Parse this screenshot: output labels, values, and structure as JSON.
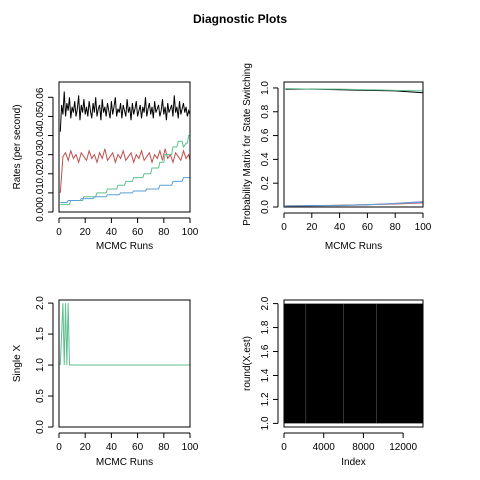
{
  "figure": {
    "title": "Diagnostic Plots"
  },
  "chart_data": [
    {
      "type": "line",
      "xlabel": "MCMC Runs",
      "ylabel": "Rates (per second)",
      "xlim": [
        0,
        100
      ],
      "ylim": [
        0,
        0.068
      ],
      "xticks": [
        0,
        20,
        40,
        60,
        80,
        100
      ],
      "yticks": [
        0.0,
        0.01,
        0.02,
        0.03,
        0.04,
        0.05,
        0.06
      ],
      "ytick_labels": [
        "0.00",
        "0.01",
        "0.02",
        "0.03",
        "0.04",
        "0.05",
        "0.06"
      ],
      "series": [
        {
          "color": "#000000",
          "x": [
            1,
            2,
            3,
            4,
            5,
            6,
            7,
            8,
            9,
            10,
            11,
            12,
            13,
            14,
            15,
            16,
            17,
            18,
            19,
            20,
            21,
            22,
            23,
            24,
            25,
            26,
            27,
            28,
            29,
            30,
            31,
            32,
            33,
            34,
            35,
            36,
            37,
            38,
            39,
            40,
            41,
            42,
            43,
            44,
            45,
            46,
            47,
            48,
            49,
            50,
            51,
            52,
            53,
            54,
            55,
            56,
            57,
            58,
            59,
            60,
            61,
            62,
            63,
            64,
            65,
            66,
            67,
            68,
            69,
            70,
            71,
            72,
            73,
            74,
            75,
            76,
            77,
            78,
            79,
            80,
            81,
            82,
            83,
            84,
            85,
            86,
            87,
            88,
            89,
            90,
            91,
            92,
            93,
            94,
            95,
            96,
            97,
            98,
            99,
            100
          ],
          "y": [
            0.042,
            0.056,
            0.051,
            0.063,
            0.05,
            0.057,
            0.053,
            0.06,
            0.049,
            0.055,
            0.052,
            0.058,
            0.05,
            0.054,
            0.061,
            0.048,
            0.056,
            0.052,
            0.059,
            0.051,
            0.055,
            0.05,
            0.058,
            0.053,
            0.049,
            0.057,
            0.052,
            0.06,
            0.05,
            0.054,
            0.056,
            0.048,
            0.059,
            0.052,
            0.055,
            0.05,
            0.057,
            0.053,
            0.049,
            0.058,
            0.051,
            0.055,
            0.06,
            0.05,
            0.054,
            0.052,
            0.057,
            0.049,
            0.056,
            0.053,
            0.05,
            0.059,
            0.052,
            0.055,
            0.048,
            0.057,
            0.051,
            0.054,
            0.058,
            0.05,
            0.053,
            0.056,
            0.049,
            0.055,
            0.052,
            0.06,
            0.05,
            0.054,
            0.057,
            0.051,
            0.055,
            0.049,
            0.058,
            0.052,
            0.054,
            0.056,
            0.05,
            0.053,
            0.059,
            0.051,
            0.055,
            0.048,
            0.057,
            0.052,
            0.054,
            0.056,
            0.05,
            0.061,
            0.052,
            0.055,
            0.049,
            0.058,
            0.051,
            0.054,
            0.057,
            0.052,
            0.055,
            0.05,
            0.053,
            0.051
          ]
        },
        {
          "color": "#c0504d",
          "x": [
            1,
            3,
            5,
            7,
            9,
            11,
            13,
            15,
            17,
            19,
            21,
            23,
            25,
            27,
            29,
            31,
            33,
            35,
            37,
            39,
            41,
            43,
            45,
            47,
            49,
            51,
            53,
            55,
            57,
            59,
            61,
            63,
            65,
            67,
            69,
            71,
            73,
            75,
            77,
            79,
            81,
            83,
            85,
            87,
            89,
            91,
            93,
            95,
            97,
            99,
            100
          ],
          "y": [
            0.01,
            0.029,
            0.031,
            0.027,
            0.032,
            0.028,
            0.03,
            0.026,
            0.031,
            0.029,
            0.027,
            0.032,
            0.028,
            0.03,
            0.026,
            0.031,
            0.028,
            0.033,
            0.027,
            0.029,
            0.031,
            0.026,
            0.03,
            0.028,
            0.032,
            0.027,
            0.029,
            0.031,
            0.026,
            0.03,
            0.028,
            0.032,
            0.027,
            0.029,
            0.031,
            0.026,
            0.03,
            0.028,
            0.032,
            0.027,
            0.033,
            0.028,
            0.03,
            0.026,
            0.031,
            0.029,
            0.027,
            0.032,
            0.028,
            0.03,
            0.027
          ]
        },
        {
          "color": "#5fbf8f",
          "x": [
            1,
            8,
            9,
            18,
            19,
            28,
            29,
            36,
            37,
            44,
            45,
            50,
            51,
            56,
            57,
            64,
            65,
            70,
            71,
            76,
            77,
            80,
            81,
            86,
            87,
            90,
            91,
            94,
            95,
            97,
            98,
            99,
            100
          ],
          "y": [
            0.004,
            0.004,
            0.006,
            0.006,
            0.008,
            0.008,
            0.01,
            0.01,
            0.012,
            0.012,
            0.014,
            0.014,
            0.016,
            0.016,
            0.018,
            0.018,
            0.02,
            0.02,
            0.023,
            0.023,
            0.026,
            0.026,
            0.03,
            0.03,
            0.034,
            0.034,
            0.037,
            0.037,
            0.034,
            0.036,
            0.036,
            0.04,
            0.04
          ]
        },
        {
          "color": "#5a9fd4",
          "x": [
            1,
            6,
            7,
            16,
            17,
            26,
            27,
            36,
            37,
            46,
            47,
            56,
            57,
            66,
            67,
            76,
            77,
            86,
            87,
            94,
            95,
            100
          ],
          "y": [
            0.005,
            0.005,
            0.006,
            0.006,
            0.007,
            0.007,
            0.008,
            0.008,
            0.009,
            0.009,
            0.01,
            0.01,
            0.011,
            0.011,
            0.012,
            0.012,
            0.014,
            0.014,
            0.016,
            0.016,
            0.018,
            0.018
          ]
        }
      ]
    },
    {
      "type": "line",
      "xlabel": "MCMC Runs",
      "ylabel": "Probability Matrix for State Switching",
      "xlim": [
        0,
        100
      ],
      "ylim": [
        0,
        1.05
      ],
      "xticks": [
        0,
        20,
        40,
        60,
        80,
        100
      ],
      "yticks": [
        0.0,
        0.2,
        0.4,
        0.6,
        0.8,
        1.0
      ],
      "ytick_labels": [
        "0.0",
        "0.2",
        "0.4",
        "0.6",
        "0.8",
        "1.0"
      ],
      "series": [
        {
          "color": "#000000",
          "x": [
            1,
            20,
            40,
            60,
            80,
            100
          ],
          "y": [
            0.99,
            0.99,
            0.985,
            0.98,
            0.975,
            0.96
          ]
        },
        {
          "color": "#5fbf8f",
          "x": [
            1,
            20,
            40,
            60,
            80,
            100
          ],
          "y": [
            0.995,
            0.99,
            0.99,
            0.985,
            0.98,
            0.975
          ]
        },
        {
          "color": "#c0504d",
          "x": [
            1,
            20,
            40,
            60,
            80,
            100
          ],
          "y": [
            0.01,
            0.012,
            0.015,
            0.02,
            0.025,
            0.035
          ]
        },
        {
          "color": "#9a7fc4",
          "x": [
            1,
            20,
            40,
            60,
            80,
            100
          ],
          "y": [
            0.005,
            0.01,
            0.012,
            0.018,
            0.03,
            0.045
          ]
        },
        {
          "color": "#5a9fd4",
          "x": [
            1,
            20,
            40,
            60,
            80,
            100
          ],
          "y": [
            0.008,
            0.01,
            0.014,
            0.02,
            0.028,
            0.04
          ]
        }
      ]
    },
    {
      "type": "line",
      "xlabel": "MCMC Runs",
      "ylabel": "Single X",
      "xlim": [
        0,
        100
      ],
      "ylim": [
        0,
        2.05
      ],
      "xticks": [
        0,
        20,
        40,
        60,
        80,
        100
      ],
      "yticks": [
        0.0,
        0.5,
        1.0,
        1.5,
        2.0
      ],
      "ytick_labels": [
        "0.0",
        "0.5",
        "1.0",
        "1.5",
        "2.0"
      ],
      "series": [
        {
          "color": "#5fbf8f",
          "x": [
            1,
            3,
            4,
            5,
            6,
            7,
            8,
            9,
            100
          ],
          "y": [
            1,
            2,
            1,
            2,
            1,
            2,
            1,
            1,
            1
          ]
        }
      ]
    },
    {
      "type": "line",
      "xlabel": "Index",
      "ylabel": "round(X.est)",
      "xlim": [
        0,
        14000
      ],
      "ylim": [
        0.97,
        2.03
      ],
      "xticks": [
        0,
        4000,
        8000,
        12000
      ],
      "yticks": [
        1.0,
        1.2,
        1.4,
        1.6,
        1.8,
        2.0
      ],
      "ytick_labels": [
        "1.0",
        "1.2",
        "1.4",
        "1.6",
        "1.8",
        "2.0"
      ],
      "series": [
        {
          "color": "#000000",
          "x_range": [
            1,
            14000
          ],
          "values": [
            1,
            2
          ],
          "note": "dense switching between 1 and 2"
        }
      ]
    }
  ]
}
